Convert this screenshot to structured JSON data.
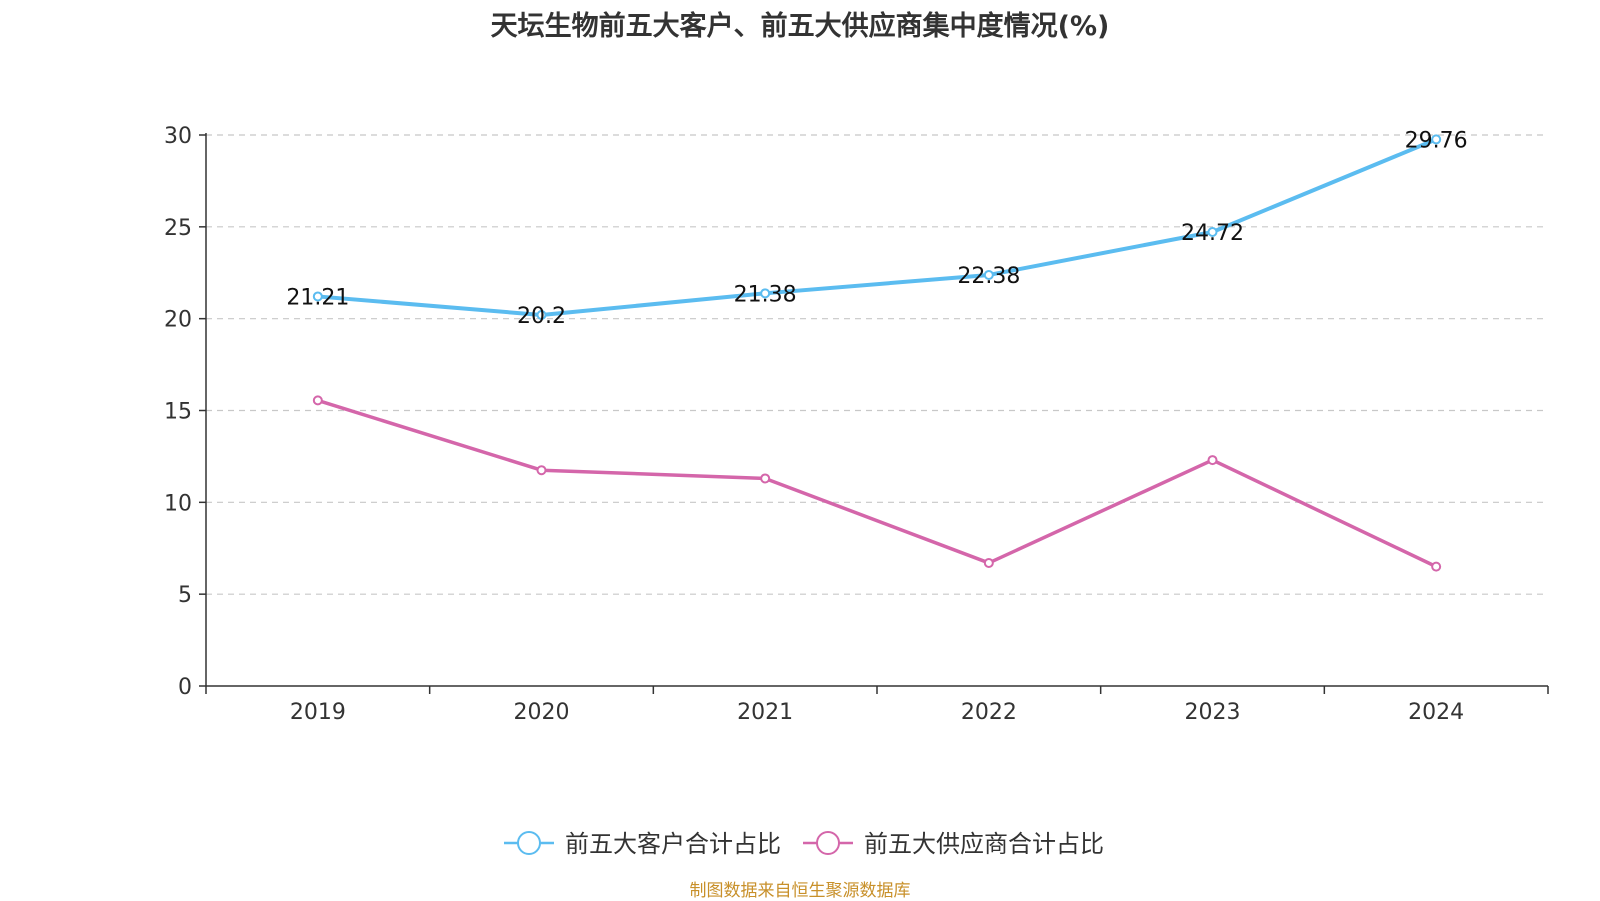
{
  "chart_data": {
    "type": "line",
    "title": "天坛生物前五大客户、前五大供应商集中度情况(%)",
    "xlabel": "",
    "ylabel": "",
    "categories": [
      "2019",
      "2020",
      "2021",
      "2022",
      "2023",
      "2024"
    ],
    "ylim": [
      0,
      30
    ],
    "yticks": [
      0,
      5,
      10,
      15,
      20,
      25,
      30
    ],
    "grid": true,
    "legend_position": "bottom",
    "series": [
      {
        "name": "前五大客户合计占比",
        "color": "#5bbcf0",
        "values": [
          21.21,
          20.2,
          21.38,
          22.38,
          24.72,
          29.76
        ],
        "data_labels": [
          "21.21",
          "20.2",
          "21.38",
          "22.38",
          "24.72",
          "29.76"
        ]
      },
      {
        "name": "前五大供应商合计占比",
        "color": "#d466aa",
        "values": [
          15.55,
          11.75,
          11.3,
          6.7,
          12.3,
          6.5
        ],
        "data_labels": []
      }
    ]
  },
  "footer": {
    "source": "制图数据来自恒生聚源数据库"
  }
}
